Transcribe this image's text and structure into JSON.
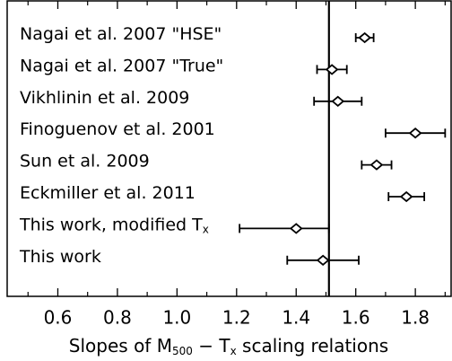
{
  "chart_data": {
    "type": "forest",
    "categories": [
      [
        "Nagai et al. 2007 \"HSE\""
      ],
      [
        "Nagai et al. 2007 \"True\""
      ],
      [
        "Vikhlinin et al. 2009"
      ],
      [
        "Finoguenov et al. 2001"
      ],
      [
        "Sun et al. 2009"
      ],
      [
        "Eckmiller et al. 2011"
      ],
      [
        "This work, modified T",
        "x"
      ],
      [
        "This work"
      ]
    ],
    "values": [
      1.63,
      1.52,
      1.54,
      1.8,
      1.67,
      1.77,
      1.4,
      1.49
    ],
    "errors": [
      [
        0.03,
        0.03
      ],
      [
        0.05,
        0.05
      ],
      [
        0.08,
        0.08
      ],
      [
        0.1,
        0.1
      ],
      [
        0.05,
        0.05
      ],
      [
        0.06,
        0.06
      ],
      [
        0.19,
        0.11
      ],
      [
        0.12,
        0.12
      ]
    ],
    "reference_line": 1.51,
    "x_label": [
      "Slopes of M",
      "500",
      " − T",
      "x",
      " scaling relations"
    ],
    "xlim": [
      0.43,
      1.92
    ],
    "xticks": [
      {
        "value": 0.6,
        "label": "0.6"
      },
      {
        "value": 0.8,
        "label": "0.8"
      },
      {
        "value": 1.0,
        "label": "1.0"
      },
      {
        "value": 1.2,
        "label": "1.2"
      },
      {
        "value": 1.4,
        "label": "1.4"
      },
      {
        "value": 1.6,
        "label": "1.6"
      },
      {
        "value": 1.8,
        "label": "1.8"
      }
    ],
    "minor_xticks": [
      0.5,
      0.7,
      0.9,
      1.1,
      1.3,
      1.5,
      1.7,
      1.9
    ],
    "color": "#000000"
  }
}
